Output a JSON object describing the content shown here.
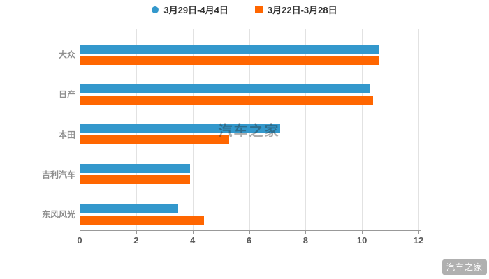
{
  "chart_data": {
    "type": "bar",
    "orientation": "horizontal",
    "title": "",
    "categories": [
      "大众",
      "日产",
      "本田",
      "吉利汽车",
      "东风风光"
    ],
    "series": [
      {
        "name": "3月29日-4月4日",
        "marker": "circle",
        "color": "#3398cc",
        "values": [
          10.6,
          10.3,
          7.1,
          3.9,
          3.5
        ]
      },
      {
        "name": "3月22日-3月28日",
        "marker": "square",
        "color": "#ff6600",
        "values": [
          10.6,
          10.4,
          5.3,
          3.9,
          4.4
        ]
      }
    ],
    "xlim": [
      0,
      12
    ],
    "xticks": [
      0,
      2,
      4,
      6,
      8,
      10,
      12
    ],
    "grid": true,
    "legend_position": "top"
  },
  "watermark": {
    "center_text": "汽车之家",
    "corner_text": "汽车之家"
  },
  "colors": {
    "series1": "#3398cc",
    "series2": "#ff6600",
    "gridline": "#e2e2e2",
    "axis": "#999999",
    "tick_label": "#5a5a5a",
    "category_label": "#8f8f8f",
    "legend_label": "#333333",
    "background": "#ffffff"
  }
}
